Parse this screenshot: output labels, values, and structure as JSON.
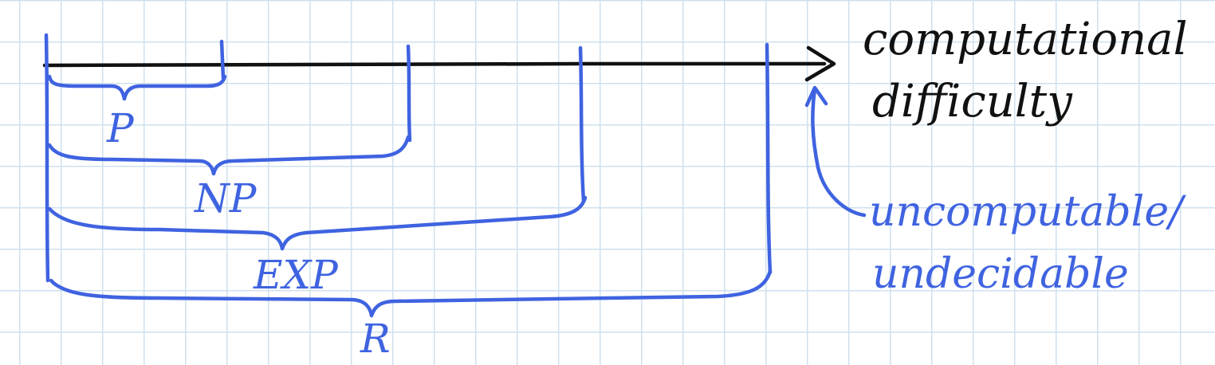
{
  "axis": {
    "label_line1": "computational",
    "label_line2": "difficulty"
  },
  "classes": [
    {
      "name": "P"
    },
    {
      "name": "NP"
    },
    {
      "name": "EXP"
    },
    {
      "name": "R"
    }
  ],
  "annotation": {
    "line1": "uncomputable/",
    "line2": "undecidable"
  },
  "colors": {
    "axis": "#111111",
    "ink": "#3f63e0",
    "grid": "#cfe0ee"
  }
}
